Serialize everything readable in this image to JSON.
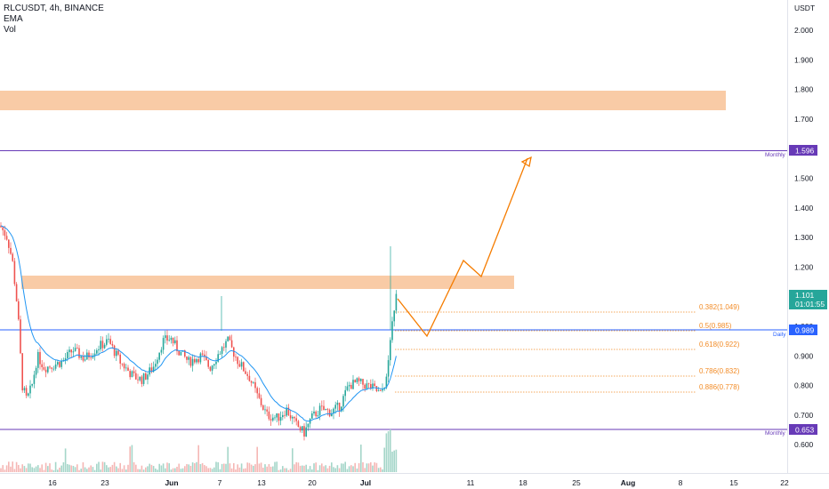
{
  "header": {
    "symbol_line": "RLCUSDT, 4h, BINANCE",
    "indicator_1": "EMA",
    "indicator_2": "Vol"
  },
  "price_axis": {
    "currency": "USDT",
    "ticks": [
      "2.000",
      "1.900",
      "1.800",
      "1.700",
      "1.600",
      "1.500",
      "1.400",
      "1.300",
      "1.200",
      "1.100",
      "1.000",
      "0.900",
      "0.800",
      "0.700",
      "0.600"
    ]
  },
  "time_axis": {
    "ticks": [
      "16",
      "23",
      "Jun",
      "7",
      "13",
      "20",
      "Jul",
      "11",
      "18",
      "25",
      "Aug",
      "8",
      "15",
      "22"
    ]
  },
  "levels": {
    "monthly_high": {
      "value": "1.596",
      "label": "Monthly",
      "color": "#673ab7"
    },
    "daily": {
      "value": "0.989",
      "label": "Daily",
      "color": "#2962ff"
    },
    "monthly_low": {
      "value": "0.653",
      "label": "Monthly",
      "color": "#673ab7"
    }
  },
  "current_price": {
    "value": "1.101",
    "countdown": "01:01:55",
    "color": "#26a69a"
  },
  "fib_levels": [
    {
      "label": "0.382(1.049)"
    },
    {
      "label": "0.5(0.985)"
    },
    {
      "label": "0.618(0.922)"
    },
    {
      "label": "0.786(0.832)"
    },
    {
      "label": "0.886(0.778)"
    }
  ],
  "colors": {
    "up": "#26a69a",
    "down": "#ef5350",
    "zone": "#f9cba6",
    "projection": "#f57c00",
    "ema": "#2196f3"
  }
}
